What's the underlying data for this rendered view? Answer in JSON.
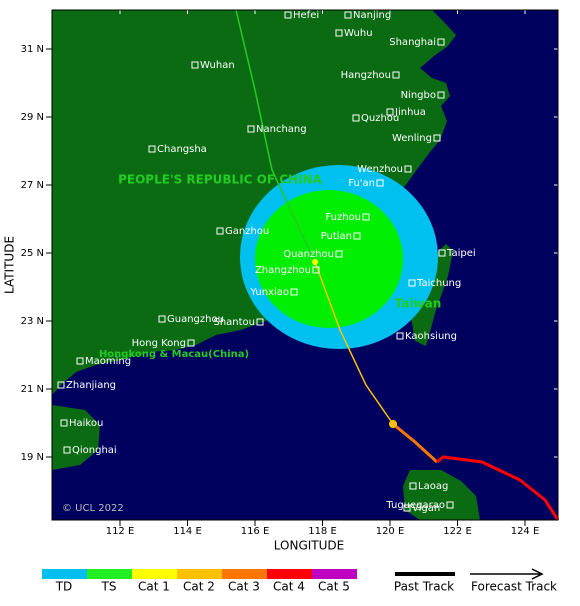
{
  "map": {
    "axes": {
      "x_label": "LONGITUDE",
      "y_label": "LATITUDE",
      "x_ticks": [
        {
          "value": 112,
          "label": "112 E"
        },
        {
          "value": 114,
          "label": "114 E"
        },
        {
          "value": 116,
          "label": "116 E"
        },
        {
          "value": 118,
          "label": "118 E"
        },
        {
          "value": 120,
          "label": "120 E"
        },
        {
          "value": 122,
          "label": "122 E"
        },
        {
          "value": 124,
          "label": "124 E"
        }
      ],
      "y_ticks": [
        {
          "value": 31,
          "label": "31 N"
        },
        {
          "value": 29,
          "label": "29 N"
        },
        {
          "value": 27,
          "label": "27 N"
        },
        {
          "value": 25,
          "label": "25 N"
        },
        {
          "value": 23,
          "label": "23 N"
        },
        {
          "value": 21,
          "label": "21 N"
        },
        {
          "value": 19,
          "label": "19 N"
        }
      ]
    },
    "cities": [
      "Hefei",
      "Nanjing",
      "Wuhu",
      "Shanghai",
      "Wuhan",
      "Hangzhou",
      "Ningbo",
      "Jinhua",
      "Quzhou",
      "Wenling",
      "Nanchang",
      "Changsha",
      "Wenzhou",
      "Fu'an",
      "Fuzhou",
      "Putian",
      "Ganzhou",
      "Quanzhou",
      "Taipei",
      "Zhangzhou",
      "Taichung",
      "Yunxiao",
      "Guangzhou",
      "Shantou",
      "Kaohsiung",
      "Hong Kong",
      "Maoming",
      "Zhanjiang",
      "Haikou",
      "Qionghai",
      "Laoag",
      "Tuguegarao",
      "Vigan"
    ],
    "regions": [
      "PEOPLE'S REPUBLIC OF CHINA",
      "Taiwan",
      "Hongkong & Macau(China)"
    ],
    "copyright": "© UCL 2022"
  },
  "legend": {
    "intensity": [
      "TD",
      "TS",
      "Cat 1",
      "Cat 2",
      "Cat 3",
      "Cat 4",
      "Cat 5"
    ],
    "tracks": [
      "Past Track",
      "Forecast Track"
    ]
  }
}
